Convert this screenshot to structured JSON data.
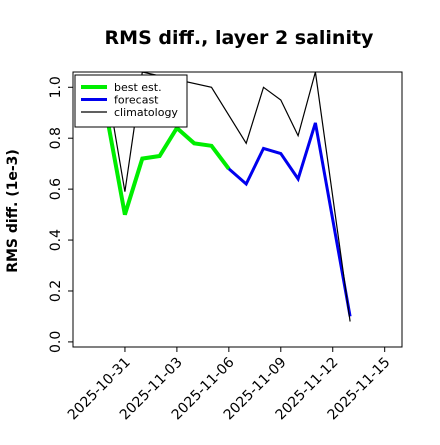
{
  "chart_data": {
    "type": "line",
    "title": "RMS diff., layer 2 salinity",
    "xlabel": "",
    "ylabel": "RMS diff. (1e-3)",
    "xlim": [
      "2025-10-28",
      "2025-11-16"
    ],
    "ylim": [
      -0.02,
      1.06
    ],
    "yticks": [
      "0.0",
      "0.2",
      "0.4",
      "0.6",
      "0.8",
      "1.0"
    ],
    "xticks": [
      {
        "date": "2025-10-31",
        "label": "2025-10-31",
        "color": "#000000"
      },
      {
        "date": "2025-11-03",
        "label": "2025-11-03",
        "color": "#000000"
      },
      {
        "date": "2025-11-06",
        "label": "2025-11-06",
        "color": "#228B22"
      },
      {
        "date": "2025-11-09",
        "label": "2025-11-09",
        "color": "#000000"
      },
      {
        "date": "2025-11-12",
        "label": "2025-11-12",
        "color": "#000000"
      },
      {
        "date": "2025-11-15",
        "label": "2025-11-15",
        "color": "#000000"
      }
    ],
    "grid": false,
    "legend_position": "upper-left",
    "series": [
      {
        "name": "best est.",
        "color": "#00ee00",
        "linewidth": 4,
        "points": [
          [
            "2025-10-30",
            0.87
          ],
          [
            "2025-10-31",
            0.5
          ],
          [
            "2025-11-01",
            0.72
          ],
          [
            "2025-11-02",
            0.73
          ],
          [
            "2025-11-03",
            0.84
          ],
          [
            "2025-11-04",
            0.78
          ],
          [
            "2025-11-05",
            0.77
          ],
          [
            "2025-11-06",
            0.68
          ]
        ]
      },
      {
        "name": "forecast",
        "color": "#0000ee",
        "linewidth": 3,
        "points": [
          [
            "2025-11-06",
            0.68
          ],
          [
            "2025-11-07",
            0.62
          ],
          [
            "2025-11-08",
            0.76
          ],
          [
            "2025-11-09",
            0.74
          ],
          [
            "2025-11-10",
            0.64
          ],
          [
            "2025-11-11",
            0.86
          ],
          [
            "2025-11-13",
            0.1
          ]
        ]
      },
      {
        "name": "climatology",
        "color": "#000000",
        "linewidth": 1.2,
        "points": [
          [
            "2025-10-30",
            0.99
          ],
          [
            "2025-10-31",
            0.59
          ],
          [
            "2025-11-01",
            1.06
          ],
          [
            "2025-11-05",
            1.0
          ],
          [
            "2025-11-07",
            0.78
          ],
          [
            "2025-11-08",
            1.0
          ],
          [
            "2025-11-09",
            0.95
          ],
          [
            "2025-11-10",
            0.81
          ],
          [
            "2025-11-11",
            1.06
          ],
          [
            "2025-11-13",
            0.08
          ]
        ]
      }
    ]
  }
}
